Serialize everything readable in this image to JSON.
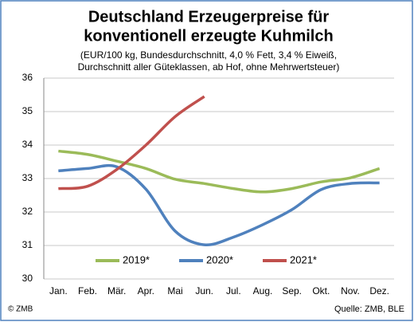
{
  "chart_data": {
    "type": "line",
    "title": [
      "Deutschland Erzeugerpreise für",
      "konventionell erzeugte Kuhmilch"
    ],
    "subtitle": [
      "(EUR/100 kg, Bundesdurchschnitt, 4,0 % Fett, 3,4 % Eiweiß,",
      "Durchschnitt aller Güteklassen, ab Hof, ohne Mehrwertsteuer)"
    ],
    "categories": [
      "Jan.",
      "Feb.",
      "Mär.",
      "Apr.",
      "Mai",
      "Jun.",
      "Jul.",
      "Aug.",
      "Sep.",
      "Okt.",
      "Nov.",
      "Dez."
    ],
    "series": [
      {
        "name": "2019*",
        "color": "#9bbb59",
        "values": [
          33.82,
          33.72,
          33.52,
          33.3,
          32.98,
          32.85,
          32.7,
          32.6,
          32.7,
          32.9,
          33.02,
          33.3
        ]
      },
      {
        "name": "2020*",
        "color": "#4f81bd",
        "values": [
          33.23,
          33.3,
          33.35,
          32.68,
          31.43,
          31.02,
          31.25,
          31.62,
          32.07,
          32.67,
          32.85,
          32.87
        ]
      },
      {
        "name": "2021*",
        "color": "#c0504d",
        "values": [
          32.7,
          32.77,
          33.27,
          34.0,
          34.85,
          35.45,
          null,
          null,
          null,
          null,
          null,
          null
        ]
      }
    ],
    "ylim": [
      30,
      36
    ],
    "yticks": [
      30,
      31,
      32,
      33,
      34,
      35,
      36
    ],
    "grid": true,
    "legend": "bottom",
    "copyright": "© ZMB",
    "source": "Quelle: ZMB, BLE"
  }
}
